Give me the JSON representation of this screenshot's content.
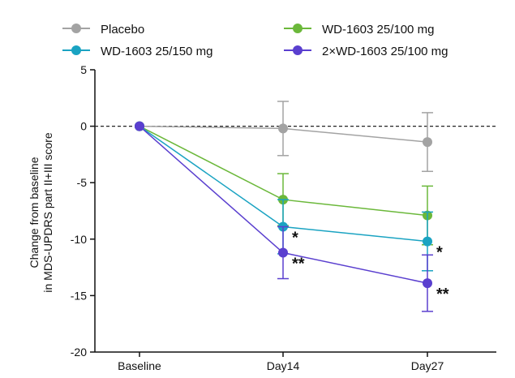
{
  "chart_data": {
    "type": "line",
    "title": "",
    "xlabel": "",
    "ylabel_lines": [
      "Change from baseline",
      "in MDS-UPDRS part II+III score"
    ],
    "categories": [
      "Baseline",
      "Day14",
      "Day27"
    ],
    "ylim": [
      -20,
      5
    ],
    "yticks": [
      5,
      0,
      -5,
      -10,
      -15,
      -20
    ],
    "reference_line": 0,
    "legend_position": "top",
    "series": [
      {
        "name": "Placebo",
        "color": "#a3a3a3",
        "values": [
          0,
          -0.2,
          -1.4
        ],
        "error": [
          0,
          2.4,
          2.6
        ],
        "annotations": [
          "",
          "",
          ""
        ]
      },
      {
        "name": "WD-1603 25/100 mg",
        "color": "#6bb83a",
        "values": [
          0,
          -6.5,
          -7.9
        ],
        "error": [
          0,
          2.3,
          2.6
        ],
        "annotations": [
          "",
          "",
          ""
        ]
      },
      {
        "name": "WD-1603 25/150 mg",
        "color": "#1aa3c2",
        "values": [
          0,
          -8.9,
          -10.2
        ],
        "error": [
          0,
          2.4,
          2.6
        ],
        "annotations": [
          "",
          "*",
          "*"
        ]
      },
      {
        "name": "2×WD-1603 25/100 mg",
        "color": "#5a3fcf",
        "values": [
          0,
          -11.2,
          -13.9
        ],
        "error": [
          0,
          2.3,
          2.5
        ],
        "annotations": [
          "",
          "**",
          "**"
        ]
      }
    ]
  }
}
